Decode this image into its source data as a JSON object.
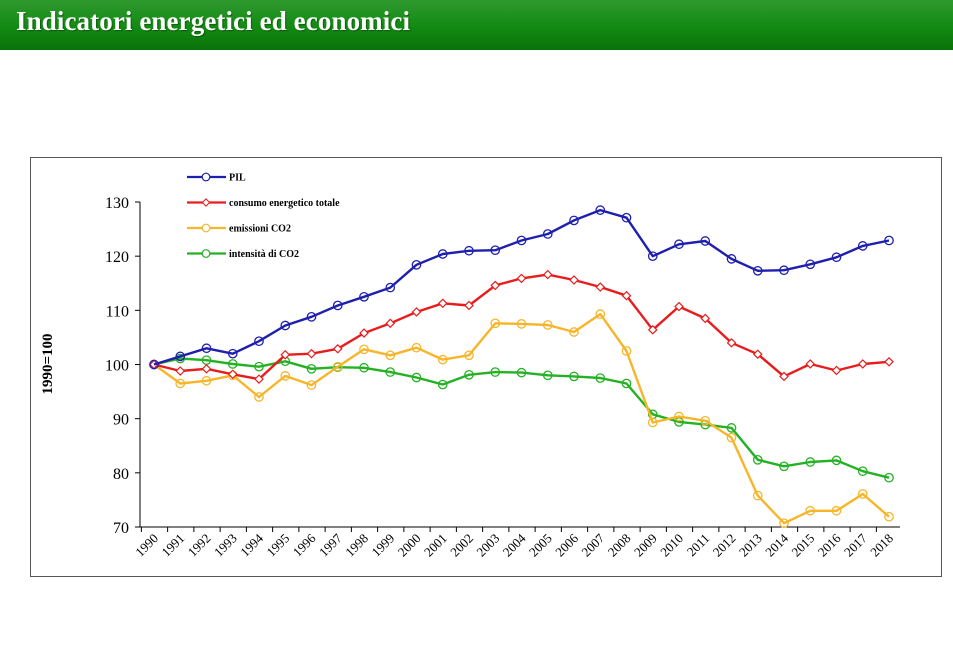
{
  "header": {
    "title": "Indicatori energetici ed economici"
  },
  "chart_data": {
    "type": "line",
    "title": "",
    "xlabel": "",
    "ylabel": "1990=100",
    "ylim": [
      70,
      130
    ],
    "yticks": [
      70,
      80,
      90,
      100,
      110,
      120,
      130
    ],
    "grid": false,
    "legend_position": "top-left",
    "x": [
      "1990",
      "1991",
      "1992",
      "1993",
      "1994",
      "1995",
      "1996",
      "1997",
      "1998",
      "1999",
      "2000",
      "2001",
      "2002",
      "2003",
      "2004",
      "2005",
      "2006",
      "2007",
      "2008",
      "2009",
      "2010",
      "2011",
      "2012",
      "2013",
      "2014",
      "2015",
      "2016",
      "2017",
      "2018"
    ],
    "series": [
      {
        "name": "PIL",
        "color": "#1f1faf",
        "marker": "circle",
        "values": [
          100,
          101.5,
          103.0,
          102.0,
          104.3,
          107.2,
          108.8,
          110.9,
          112.5,
          114.2,
          118.4,
          120.4,
          121.0,
          121.1,
          122.9,
          124.1,
          126.6,
          128.5,
          127.1,
          120.0,
          122.2,
          122.8,
          119.5,
          117.3,
          117.4,
          118.5,
          119.8,
          121.9,
          122.9
        ]
      },
      {
        "name": "consumo energetico totale",
        "color": "#e81c1c",
        "marker": "diamond",
        "values": [
          100,
          98.8,
          99.2,
          98.2,
          97.3,
          101.8,
          102.0,
          102.9,
          105.8,
          107.6,
          109.7,
          111.3,
          110.9,
          114.6,
          115.9,
          116.6,
          115.6,
          114.3,
          112.7,
          106.4,
          110.7,
          108.5,
          104.0,
          101.9,
          97.8,
          100.1,
          98.9,
          100.1,
          100.5
        ]
      },
      {
        "name": "emissioni CO2",
        "color": "#f7b52a",
        "marker": "circle",
        "values": [
          100,
          96.5,
          97.0,
          98.0,
          94.0,
          97.9,
          96.2,
          99.6,
          102.8,
          101.7,
          103.1,
          100.9,
          101.7,
          107.6,
          107.5,
          107.3,
          106.0,
          109.3,
          102.5,
          89.3,
          90.4,
          89.6,
          86.5,
          75.8,
          70.7,
          73.0,
          73.0,
          76.1,
          71.9
        ]
      },
      {
        "name": "intensità di CO2",
        "color": "#24b124",
        "marker": "circle",
        "values": [
          100,
          101.1,
          100.8,
          100.1,
          99.6,
          100.6,
          99.2,
          99.5,
          99.4,
          98.6,
          97.6,
          96.3,
          98.1,
          98.6,
          98.5,
          98.0,
          97.8,
          97.5,
          96.5,
          90.8,
          89.4,
          88.9,
          88.3,
          82.4,
          81.2,
          82.0,
          82.3,
          80.3,
          79.1
        ]
      }
    ]
  }
}
